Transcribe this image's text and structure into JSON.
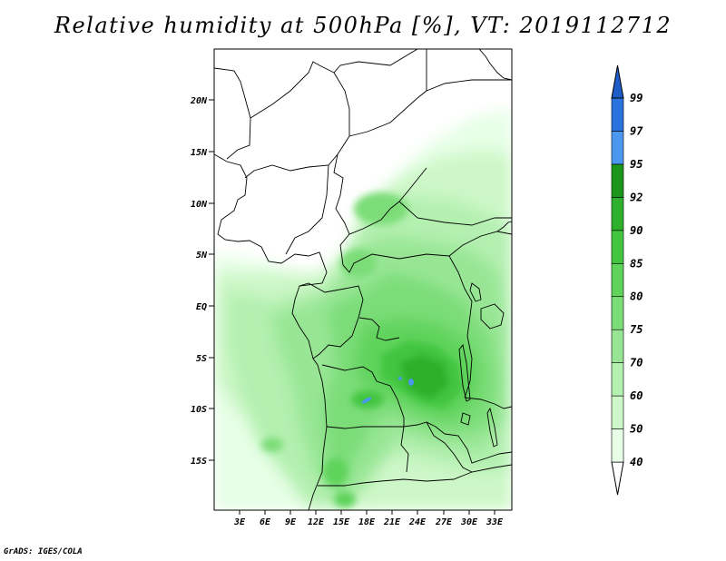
{
  "title": "Relative humidity at 500hPa [%], VT: 2019112712",
  "credit": "GrADS: IGES/COLA",
  "map": {
    "lat_labels": [
      "20N",
      "15N",
      "10N",
      "5N",
      "EQ",
      "5S",
      "10S",
      "15S"
    ],
    "lon_labels": [
      "3E",
      "6E",
      "9E",
      "12E",
      "15E",
      "18E",
      "21E",
      "24E",
      "27E",
      "30E",
      "33E"
    ]
  },
  "colorbar": {
    "levels": [
      "40",
      "50",
      "60",
      "70",
      "75",
      "80",
      "85",
      "90",
      "92",
      "95",
      "97",
      "99"
    ],
    "colors": [
      "#ffffff",
      "#e6ffe6",
      "#cdf7c8",
      "#b4f0b0",
      "#98e695",
      "#7bdd78",
      "#5fd35c",
      "#43c540",
      "#2fb02c",
      "#1c961a",
      "#4b96ee",
      "#2a73dc",
      "#1e5cc8"
    ]
  }
}
